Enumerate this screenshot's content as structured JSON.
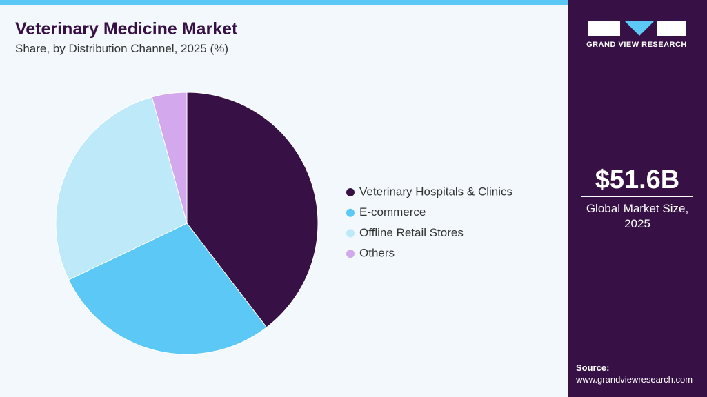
{
  "header": {
    "title": "Veterinary Medicine Market",
    "subtitle": "Share, by Distribution Channel, 2025 (%)"
  },
  "chart_data": {
    "type": "pie",
    "categories": [
      "Veterinary Hospitals & Clinics",
      "E-commerce",
      "Offline Retail Stores",
      "Others"
    ],
    "values": [
      39.6,
      28.3,
      27.8,
      4.3
    ],
    "colors": [
      "#371045",
      "#5bc8f5",
      "#bde9f9",
      "#d4a8ec"
    ]
  },
  "brand": {
    "name": "GRAND VIEW RESEARCH"
  },
  "market": {
    "value": "$51.6B",
    "label": "Global Market Size, 2025"
  },
  "source": {
    "label": "Source:",
    "url": "www.grandviewresearch.com"
  }
}
